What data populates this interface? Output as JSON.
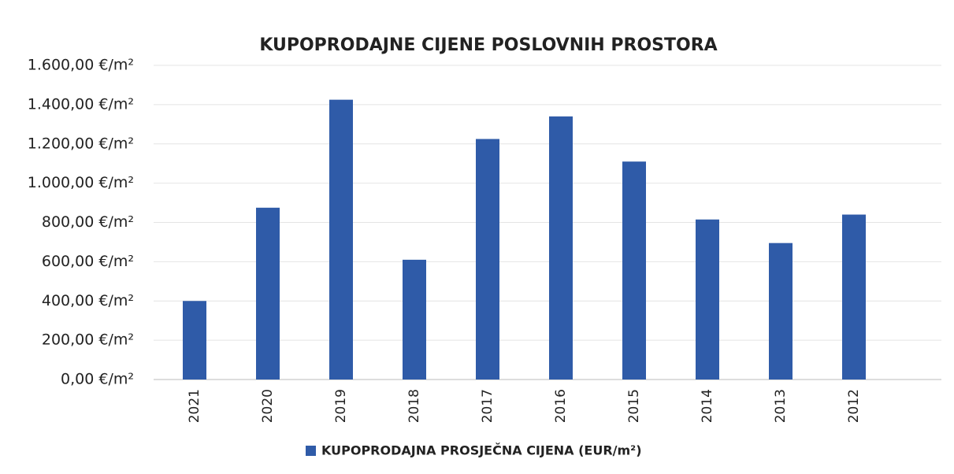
{
  "chart_data": {
    "type": "bar",
    "title": "KUPOPRODAJNE CIJENE POSLOVNIH PROSTORA",
    "categories": [
      "2021",
      "2020",
      "2019",
      "2018",
      "2017",
      "2016",
      "2015",
      "2014",
      "2013",
      "2012"
    ],
    "series": [
      {
        "name": "KUPOPRODAJNA PROSJEČNA CIJENA (EUR/m²)",
        "color": "#2f5ba8",
        "values": [
          400,
          875,
          1425,
          610,
          1225,
          1340,
          1110,
          815,
          695,
          840
        ]
      }
    ],
    "ylim": [
      0,
      1600
    ],
    "yticks": [
      {
        "value": 0,
        "label": "0,00 €/m²"
      },
      {
        "value": 200,
        "label": "200,00 €/m²"
      },
      {
        "value": 400,
        "label": "400,00 €/m²"
      },
      {
        "value": 600,
        "label": "600,00 €/m²"
      },
      {
        "value": 800,
        "label": "800,00 €/m²"
      },
      {
        "value": 1000,
        "label": "1.000,00 €/m²"
      },
      {
        "value": 1200,
        "label": "1.200,00 €/m²"
      },
      {
        "value": 1400,
        "label": "1.400,00 €/m²"
      },
      {
        "value": 1600,
        "label": "1.600,00 €/m²"
      }
    ],
    "grid": true,
    "legend": "bottom"
  }
}
